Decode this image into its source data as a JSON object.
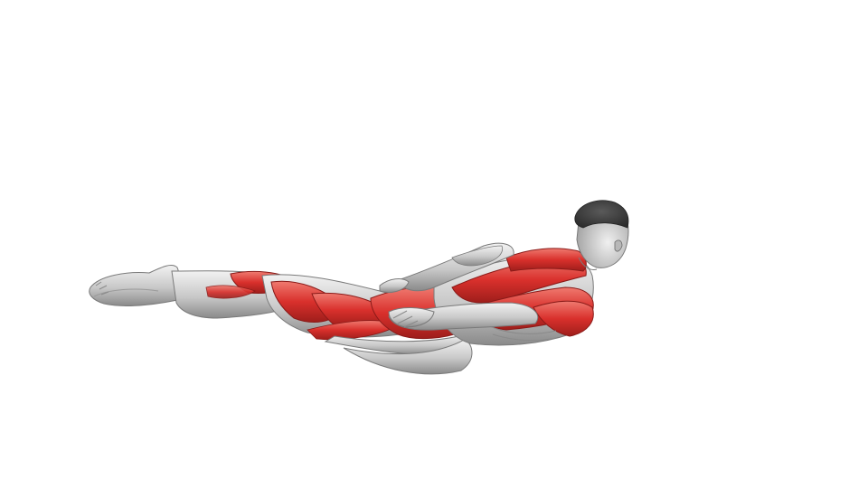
{
  "scene": {
    "subject": "prone-body-extension-muscle-illustration",
    "background_color": "#ffffff",
    "colors": {
      "skin_gray_light": "#e6e6e6",
      "skin_gray_mid": "#bdbdbd",
      "skin_gray_dark": "#7a7a7a",
      "hair": "#3a3a3a",
      "muscle_red": "#d9302c",
      "muscle_red_light": "#e8746c",
      "muscle_red_dark": "#a4201d"
    }
  }
}
